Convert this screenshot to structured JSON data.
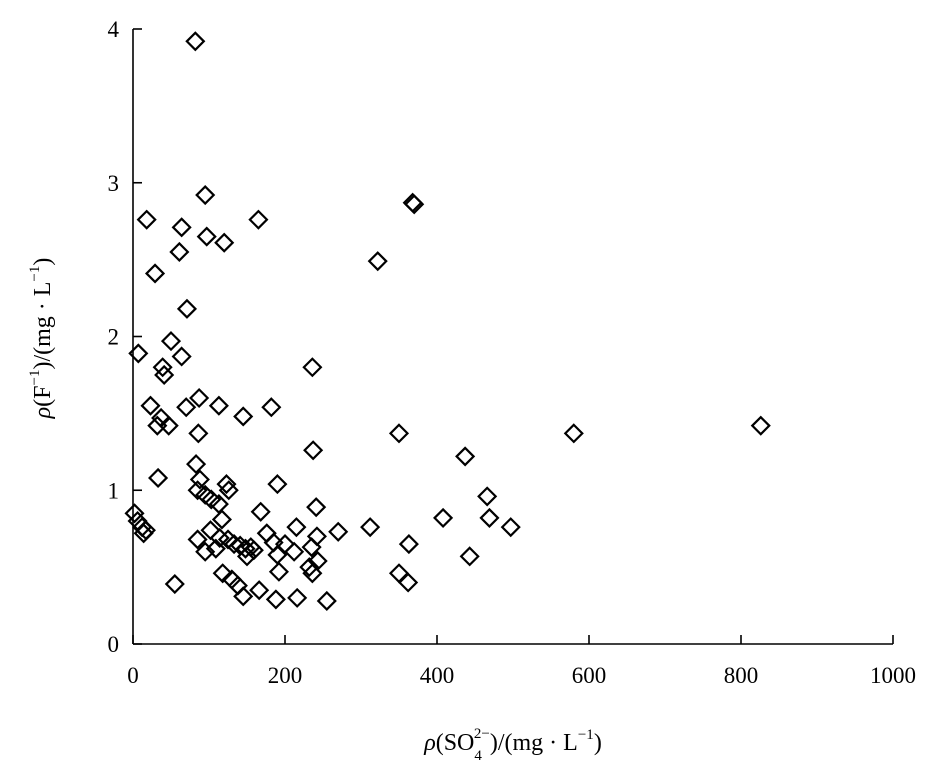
{
  "chart_data": {
    "type": "scatter",
    "marker": "diamond",
    "marker_color": "#000000",
    "grid": false,
    "legend": "none",
    "xlim": [
      0,
      1000
    ],
    "ylim": [
      0,
      4
    ],
    "x_ticks": [
      0,
      200,
      400,
      600,
      800,
      1000
    ],
    "y_ticks": [
      0,
      1,
      2,
      3,
      4
    ],
    "x_tick_labels": [
      "0",
      "200",
      "400",
      "600",
      "800",
      "1000"
    ],
    "y_tick_labels": [
      "0",
      "1",
      "2",
      "3",
      "4"
    ],
    "xlabel": {
      "prefix": "ρ(SO",
      "subscript": "4",
      "superscript": "2−",
      "suffix": ")/(mg · L",
      "unit_superscript": "−1",
      "close": ")"
    },
    "ylabel": {
      "prefix": "ρ(F",
      "superscript": "−1",
      "middle": ")/(mg · L",
      "unit_superscript": "−1",
      "close": ")"
    },
    "points": [
      [
        82,
        3.92
      ],
      [
        95,
        2.92
      ],
      [
        368,
        2.87
      ],
      [
        370,
        2.86
      ],
      [
        18,
        2.76
      ],
      [
        64,
        2.71
      ],
      [
        165,
        2.76
      ],
      [
        97,
        2.65
      ],
      [
        120,
        2.61
      ],
      [
        61,
        2.55
      ],
      [
        322,
        2.49
      ],
      [
        29,
        2.41
      ],
      [
        71,
        2.18
      ],
      [
        50,
        1.97
      ],
      [
        7,
        1.89
      ],
      [
        64,
        1.87
      ],
      [
        39,
        1.8
      ],
      [
        41,
        1.75
      ],
      [
        236,
        1.8
      ],
      [
        87,
        1.6
      ],
      [
        23,
        1.55
      ],
      [
        70,
        1.54
      ],
      [
        113,
        1.55
      ],
      [
        182,
        1.54
      ],
      [
        37,
        1.47
      ],
      [
        145,
        1.48
      ],
      [
        32,
        1.42
      ],
      [
        47,
        1.42
      ],
      [
        826,
        1.42
      ],
      [
        86,
        1.37
      ],
      [
        350,
        1.37
      ],
      [
        580,
        1.37
      ],
      [
        237,
        1.26
      ],
      [
        437,
        1.22
      ],
      [
        83,
        1.17
      ],
      [
        33,
        1.08
      ],
      [
        88,
        1.07
      ],
      [
        123,
        1.04
      ],
      [
        190,
        1.04
      ],
      [
        126,
        1.0
      ],
      [
        85,
        1.0
      ],
      [
        95,
        0.97
      ],
      [
        103,
        0.94
      ],
      [
        466,
        0.96
      ],
      [
        113,
        0.91
      ],
      [
        241,
        0.89
      ],
      [
        2,
        0.85
      ],
      [
        168,
        0.86
      ],
      [
        469,
        0.82
      ],
      [
        6,
        0.8
      ],
      [
        117,
        0.81
      ],
      [
        408,
        0.82
      ],
      [
        12,
        0.76
      ],
      [
        17,
        0.74
      ],
      [
        102,
        0.74
      ],
      [
        215,
        0.76
      ],
      [
        270,
        0.73
      ],
      [
        312,
        0.76
      ],
      [
        497,
        0.76
      ],
      [
        14,
        0.72
      ],
      [
        114,
        0.69
      ],
      [
        176,
        0.72
      ],
      [
        242,
        0.7
      ],
      [
        85,
        0.68
      ],
      [
        125,
        0.68
      ],
      [
        133,
        0.65
      ],
      [
        141,
        0.64
      ],
      [
        148,
        0.62
      ],
      [
        155,
        0.63
      ],
      [
        185,
        0.66
      ],
      [
        200,
        0.65
      ],
      [
        235,
        0.63
      ],
      [
        363,
        0.65
      ],
      [
        95,
        0.6
      ],
      [
        109,
        0.62
      ],
      [
        159,
        0.61
      ],
      [
        190,
        0.58
      ],
      [
        212,
        0.6
      ],
      [
        150,
        0.57
      ],
      [
        243,
        0.54
      ],
      [
        443,
        0.57
      ],
      [
        232,
        0.5
      ],
      [
        192,
        0.47
      ],
      [
        236,
        0.46
      ],
      [
        118,
        0.46
      ],
      [
        130,
        0.42
      ],
      [
        350,
        0.46
      ],
      [
        138,
        0.38
      ],
      [
        55,
        0.39
      ],
      [
        362,
        0.4
      ],
      [
        166,
        0.35
      ],
      [
        145,
        0.31
      ],
      [
        188,
        0.29
      ],
      [
        216,
        0.3
      ],
      [
        255,
        0.28
      ]
    ]
  }
}
